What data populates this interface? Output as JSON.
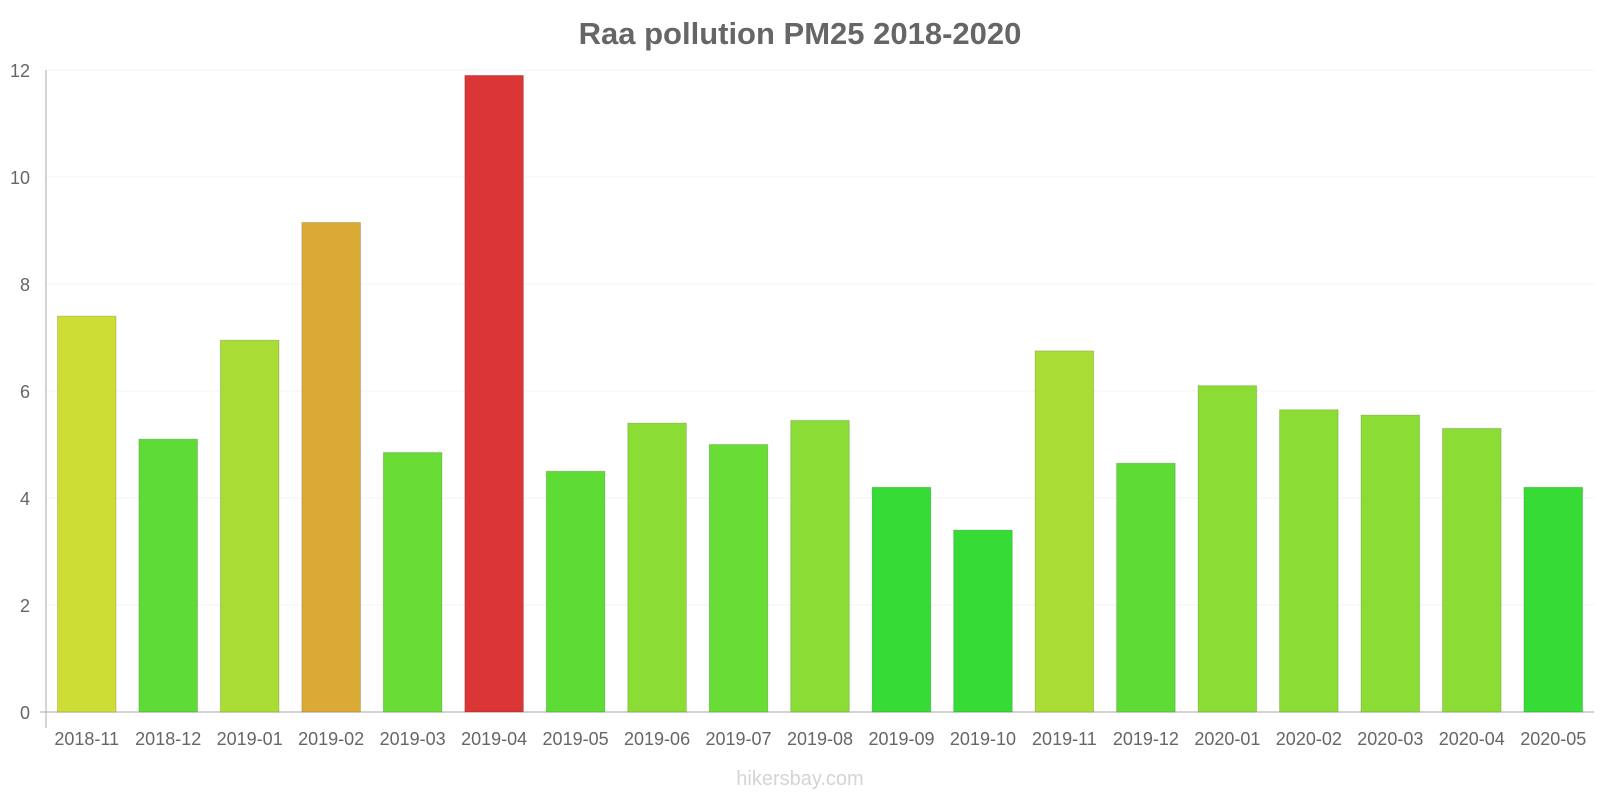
{
  "chart_data": {
    "type": "bar",
    "title": "Raa pollution PM25 2018-2020",
    "xlabel": "",
    "ylabel": "",
    "ylim": [
      0,
      12
    ],
    "yticks": [
      0,
      2,
      4,
      6,
      8,
      10,
      12
    ],
    "categories": [
      "2018-11",
      "2018-12",
      "2019-01",
      "2019-02",
      "2019-03",
      "2019-04",
      "2019-05",
      "2019-06",
      "2019-07",
      "2019-08",
      "2019-09",
      "2019-10",
      "2019-11",
      "2019-12",
      "2020-01",
      "2020-02",
      "2020-03",
      "2020-04",
      "2020-05"
    ],
    "values": [
      7.4,
      5.1,
      6.95,
      9.15,
      4.85,
      11.9,
      4.5,
      5.4,
      5.0,
      5.45,
      4.2,
      3.4,
      6.75,
      4.65,
      6.1,
      5.65,
      5.55,
      5.3,
      4.2
    ],
    "colors": [
      "#cddd35",
      "#5edb36",
      "#a9dc35",
      "#dba936",
      "#6adc36",
      "#db3636",
      "#5fdb36",
      "#8bdd36",
      "#6adc36",
      "#8bdd36",
      "#36db36",
      "#36db36",
      "#a9dc35",
      "#5fdb36",
      "#8bdd36",
      "#8bdd36",
      "#8bdd36",
      "#8bdd36",
      "#36db36"
    ]
  },
  "watermark": "hikersbay.com"
}
